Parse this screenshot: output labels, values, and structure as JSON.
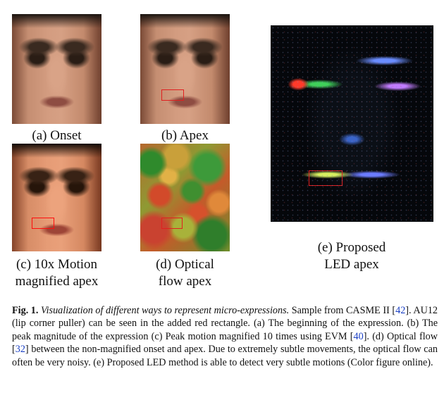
{
  "panels": {
    "a": {
      "label": "(a) Onset"
    },
    "b": {
      "label": "(b) Apex"
    },
    "c": {
      "label_line1": "(c) 10x Motion",
      "label_line2": "magnified apex"
    },
    "d": {
      "label_line1": "(d) Optical",
      "label_line2": "flow apex"
    },
    "e": {
      "label_line1": "(e) Proposed",
      "label_line2": "LED apex"
    }
  },
  "caption": {
    "fig_label": "Fig. 1.",
    "title": "Visualization of different ways to represent micro-expressions.",
    "p1": "Sample from CASME II [",
    "ref42": "42",
    "p2": "]. AU12 (lip corner puller) can be seen in the added red rectangle. (a) The beginning of the expression. (b) The peak magnitude of the expression (c) Peak motion magnified 10 times using EVM [",
    "ref40": "40",
    "p3": "]. (d) Optical flow [",
    "ref32": "32",
    "p4": "] between the non-magnified onset and apex. Due to extremely subtle movements, the optical flow can often be very noisy. (e) Proposed LED method is able to detect very subtle motions (Color figure online)."
  },
  "colors": {
    "roi": "#e02020",
    "reference_link": "#1a3fc4"
  }
}
